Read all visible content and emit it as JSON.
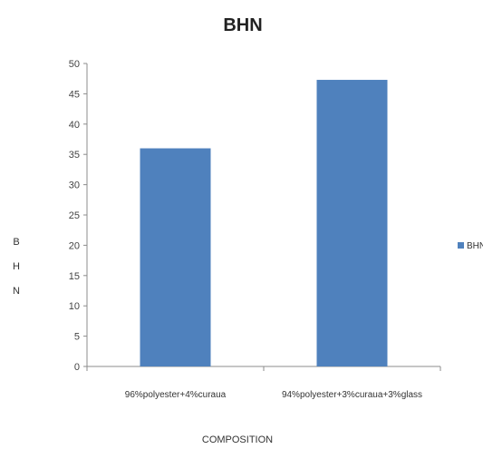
{
  "chart_data": {
    "type": "bar",
    "title": "BHN",
    "xlabel": "COMPOSITION",
    "ylabel": "BHN",
    "categories": [
      "96%polyester+4%curaua",
      "94%polyester+3%curaua+3%glass"
    ],
    "series": [
      {
        "name": "BHN",
        "values": [
          36,
          47.3
        ]
      }
    ],
    "ylim": [
      0,
      50
    ],
    "yticks": [
      0,
      5,
      10,
      15,
      20,
      25,
      30,
      35,
      40,
      45,
      50
    ],
    "grid": false,
    "legend": "right",
    "colors": {
      "bar": "#4f81bd",
      "axis": "#8c8c8c"
    }
  }
}
